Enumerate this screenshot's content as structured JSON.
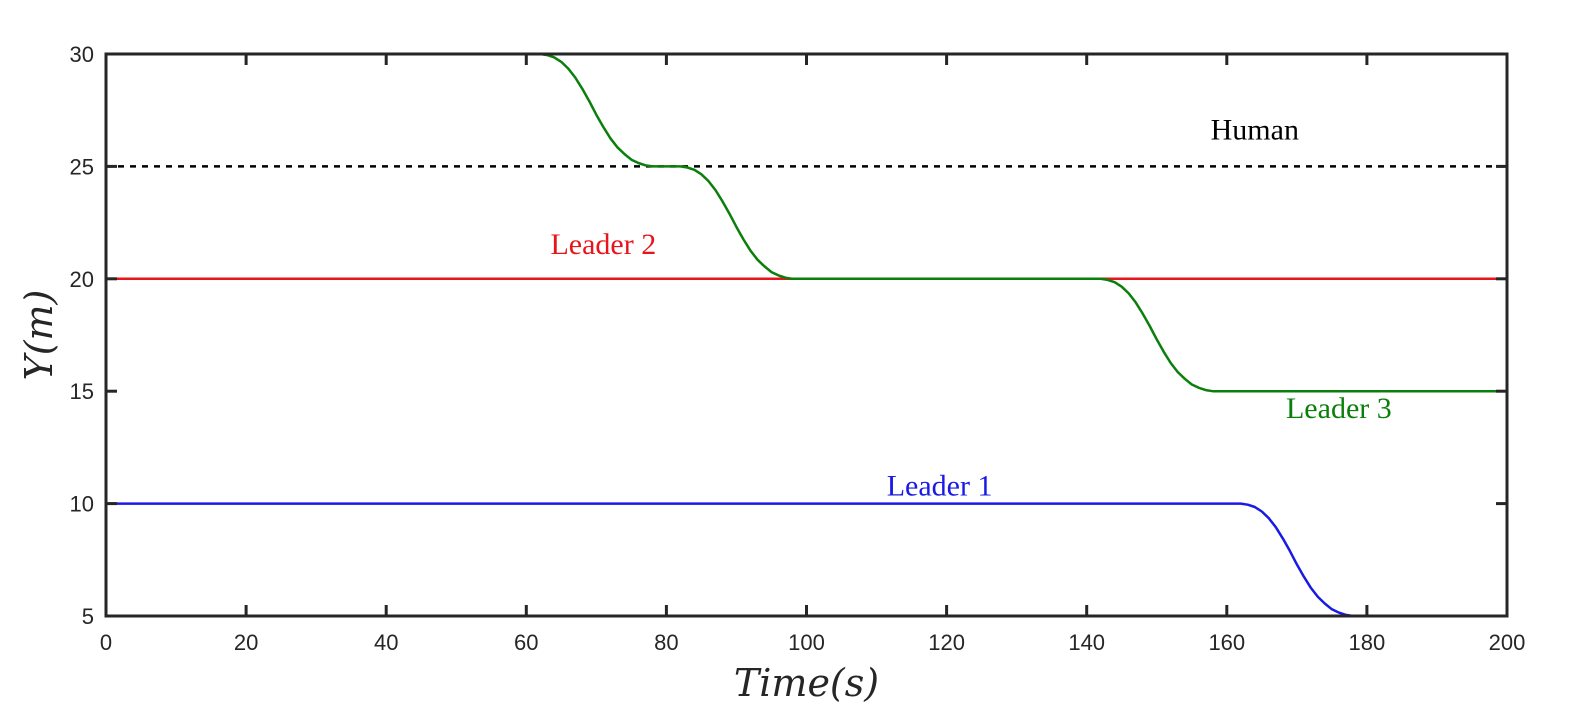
{
  "chart_data": {
    "type": "line",
    "title": "",
    "xlabel": "Time(s)",
    "ylabel": "Y(m)",
    "xlim": [
      0,
      200
    ],
    "ylim": [
      5,
      30
    ],
    "xticks": [
      0,
      20,
      40,
      60,
      80,
      100,
      120,
      140,
      160,
      180,
      200
    ],
    "yticks": [
      5,
      10,
      15,
      20,
      25,
      30
    ],
    "grid": false,
    "legend": "none",
    "series": [
      {
        "name": "Human",
        "color": "#000000",
        "dashed": true,
        "label_at": [
          164,
          26.2
        ],
        "points": [
          [
            0,
            25
          ],
          [
            200,
            25
          ]
        ]
      },
      {
        "name": "Leader 2",
        "color": "#e8141c",
        "dashed": false,
        "label_at": [
          71,
          21.1
        ],
        "points": [
          [
            0,
            20
          ],
          [
            200,
            20
          ]
        ]
      },
      {
        "name": "Leader 3",
        "color": "#0b7f0b",
        "dashed": false,
        "label_at": [
          176,
          13.8
        ],
        "points": [
          [
            0,
            30
          ],
          [
            62,
            30
          ],
          [
            63,
            29.95
          ],
          [
            64,
            29.85
          ],
          [
            65,
            29.65
          ],
          [
            66,
            29.35
          ],
          [
            67,
            28.95
          ],
          [
            68,
            28.45
          ],
          [
            69,
            27.9
          ],
          [
            70,
            27.3
          ],
          [
            71,
            26.75
          ],
          [
            72,
            26.25
          ],
          [
            73,
            25.85
          ],
          [
            74,
            25.55
          ],
          [
            75,
            25.3
          ],
          [
            76,
            25.15
          ],
          [
            77,
            25.05
          ],
          [
            78,
            25
          ],
          [
            82,
            25
          ],
          [
            83,
            24.95
          ],
          [
            84,
            24.85
          ],
          [
            85,
            24.65
          ],
          [
            86,
            24.35
          ],
          [
            87,
            23.95
          ],
          [
            88,
            23.45
          ],
          [
            89,
            22.9
          ],
          [
            90,
            22.3
          ],
          [
            91,
            21.75
          ],
          [
            92,
            21.25
          ],
          [
            93,
            20.85
          ],
          [
            94,
            20.55
          ],
          [
            95,
            20.3
          ],
          [
            96,
            20.15
          ],
          [
            97,
            20.05
          ],
          [
            98,
            20
          ],
          [
            142,
            20
          ],
          [
            143,
            19.95
          ],
          [
            144,
            19.85
          ],
          [
            145,
            19.65
          ],
          [
            146,
            19.35
          ],
          [
            147,
            18.95
          ],
          [
            148,
            18.45
          ],
          [
            149,
            17.9
          ],
          [
            150,
            17.3
          ],
          [
            151,
            16.75
          ],
          [
            152,
            16.25
          ],
          [
            153,
            15.85
          ],
          [
            154,
            15.55
          ],
          [
            155,
            15.3
          ],
          [
            156,
            15.15
          ],
          [
            157,
            15.05
          ],
          [
            158,
            15
          ],
          [
            200,
            15
          ]
        ]
      },
      {
        "name": "Leader 1",
        "color": "#1a1ae6",
        "dashed": false,
        "label_at": [
          119,
          10.35
        ],
        "points": [
          [
            0,
            10
          ],
          [
            162,
            10
          ],
          [
            163,
            9.95
          ],
          [
            164,
            9.85
          ],
          [
            165,
            9.65
          ],
          [
            166,
            9.35
          ],
          [
            167,
            8.95
          ],
          [
            168,
            8.45
          ],
          [
            169,
            7.9
          ],
          [
            170,
            7.3
          ],
          [
            171,
            6.75
          ],
          [
            172,
            6.25
          ],
          [
            173,
            5.85
          ],
          [
            174,
            5.55
          ],
          [
            175,
            5.3
          ],
          [
            176,
            5.15
          ],
          [
            177,
            5.05
          ],
          [
            178,
            5
          ],
          [
            200,
            5
          ]
        ]
      }
    ]
  }
}
